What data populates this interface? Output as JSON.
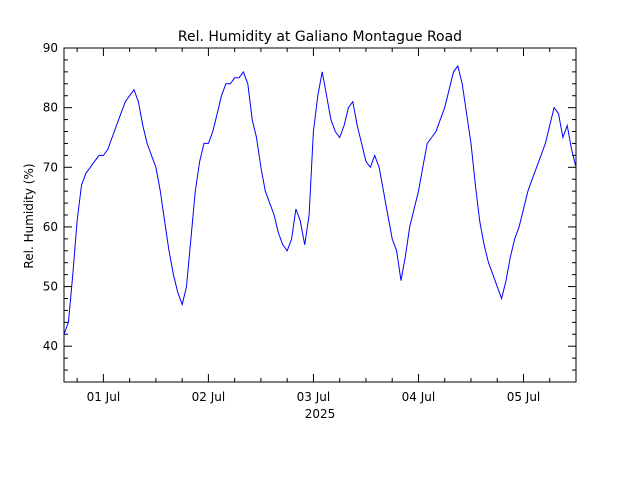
{
  "chart_data": {
    "type": "line",
    "title": "Rel. Humidity at Galiano Montague Road",
    "xlabel": "2025",
    "ylabel": "Rel. Humidity (%)",
    "ylim": [
      34,
      90
    ],
    "yticks": [
      40,
      50,
      60,
      70,
      80,
      90
    ],
    "xlim": [
      "2025-06-30 15:00",
      "2025-07-05 12:00"
    ],
    "xticks": [
      {
        "label": "01 Jul",
        "x": "2025-07-01 00:00"
      },
      {
        "label": "02 Jul",
        "x": "2025-07-02 00:00"
      },
      {
        "label": "03 Jul",
        "x": "2025-07-03 00:00"
      },
      {
        "label": "04 Jul",
        "x": "2025-07-04 00:00"
      },
      {
        "label": "05 Jul",
        "x": "2025-07-05 00:00"
      }
    ],
    "grid": false,
    "line_color": "#0000ff",
    "series": [
      {
        "values": [
          [
            "2025-06-30 15:00",
            42
          ],
          [
            "2025-06-30 16:00",
            44
          ],
          [
            "2025-06-30 17:00",
            52
          ],
          [
            "2025-06-30 18:00",
            61
          ],
          [
            "2025-06-30 19:00",
            67
          ],
          [
            "2025-06-30 20:00",
            69
          ],
          [
            "2025-06-30 21:00",
            70
          ],
          [
            "2025-06-30 22:00",
            71
          ],
          [
            "2025-06-30 23:00",
            72
          ],
          [
            "2025-07-01 00:00",
            72
          ],
          [
            "2025-07-01 01:00",
            73
          ],
          [
            "2025-07-01 02:00",
            75
          ],
          [
            "2025-07-01 03:00",
            77
          ],
          [
            "2025-07-01 04:00",
            79
          ],
          [
            "2025-07-01 05:00",
            81
          ],
          [
            "2025-07-01 06:00",
            82
          ],
          [
            "2025-07-01 07:00",
            83
          ],
          [
            "2025-07-01 08:00",
            81
          ],
          [
            "2025-07-01 09:00",
            77
          ],
          [
            "2025-07-01 10:00",
            74
          ],
          [
            "2025-07-01 11:00",
            72
          ],
          [
            "2025-07-01 12:00",
            70
          ],
          [
            "2025-07-01 13:00",
            66
          ],
          [
            "2025-07-01 14:00",
            61
          ],
          [
            "2025-07-01 15:00",
            56
          ],
          [
            "2025-07-01 16:00",
            52
          ],
          [
            "2025-07-01 17:00",
            49
          ],
          [
            "2025-07-01 18:00",
            47
          ],
          [
            "2025-07-01 19:00",
            50
          ],
          [
            "2025-07-01 20:00",
            58
          ],
          [
            "2025-07-01 21:00",
            66
          ],
          [
            "2025-07-01 22:00",
            71
          ],
          [
            "2025-07-01 23:00",
            74
          ],
          [
            "2025-07-02 00:00",
            74
          ],
          [
            "2025-07-02 01:00",
            76
          ],
          [
            "2025-07-02 02:00",
            79
          ],
          [
            "2025-07-02 03:00",
            82
          ],
          [
            "2025-07-02 04:00",
            84
          ],
          [
            "2025-07-02 05:00",
            84
          ],
          [
            "2025-07-02 06:00",
            85
          ],
          [
            "2025-07-02 07:00",
            85
          ],
          [
            "2025-07-02 08:00",
            86
          ],
          [
            "2025-07-02 09:00",
            84
          ],
          [
            "2025-07-02 10:00",
            78
          ],
          [
            "2025-07-02 11:00",
            75
          ],
          [
            "2025-07-02 12:00",
            70
          ],
          [
            "2025-07-02 13:00",
            66
          ],
          [
            "2025-07-02 14:00",
            64
          ],
          [
            "2025-07-02 15:00",
            62
          ],
          [
            "2025-07-02 16:00",
            59
          ],
          [
            "2025-07-02 17:00",
            57
          ],
          [
            "2025-07-02 18:00",
            56
          ],
          [
            "2025-07-02 19:00",
            58
          ],
          [
            "2025-07-02 20:00",
            63
          ],
          [
            "2025-07-02 21:00",
            61
          ],
          [
            "2025-07-02 22:00",
            57
          ],
          [
            "2025-07-02 23:00",
            62
          ],
          [
            "2025-07-03 00:00",
            76
          ],
          [
            "2025-07-03 01:00",
            82
          ],
          [
            "2025-07-03 02:00",
            86
          ],
          [
            "2025-07-03 03:00",
            82
          ],
          [
            "2025-07-03 04:00",
            78
          ],
          [
            "2025-07-03 05:00",
            76
          ],
          [
            "2025-07-03 06:00",
            75
          ],
          [
            "2025-07-03 07:00",
            77
          ],
          [
            "2025-07-03 08:00",
            80
          ],
          [
            "2025-07-03 09:00",
            81
          ],
          [
            "2025-07-03 10:00",
            77
          ],
          [
            "2025-07-03 11:00",
            74
          ],
          [
            "2025-07-03 12:00",
            71
          ],
          [
            "2025-07-03 13:00",
            70
          ],
          [
            "2025-07-03 14:00",
            72
          ],
          [
            "2025-07-03 15:00",
            70
          ],
          [
            "2025-07-03 16:00",
            66
          ],
          [
            "2025-07-03 17:00",
            62
          ],
          [
            "2025-07-03 18:00",
            58
          ],
          [
            "2025-07-03 19:00",
            56
          ],
          [
            "2025-07-03 20:00",
            51
          ],
          [
            "2025-07-03 21:00",
            55
          ],
          [
            "2025-07-03 22:00",
            60
          ],
          [
            "2025-07-03 23:00",
            63
          ],
          [
            "2025-07-04 00:00",
            66
          ],
          [
            "2025-07-04 01:00",
            70
          ],
          [
            "2025-07-04 02:00",
            74
          ],
          [
            "2025-07-04 03:00",
            75
          ],
          [
            "2025-07-04 04:00",
            76
          ],
          [
            "2025-07-04 05:00",
            78
          ],
          [
            "2025-07-04 06:00",
            80
          ],
          [
            "2025-07-04 07:00",
            83
          ],
          [
            "2025-07-04 08:00",
            86
          ],
          [
            "2025-07-04 09:00",
            87
          ],
          [
            "2025-07-04 10:00",
            84
          ],
          [
            "2025-07-04 11:00",
            79
          ],
          [
            "2025-07-04 12:00",
            74
          ],
          [
            "2025-07-04 13:00",
            67
          ],
          [
            "2025-07-04 14:00",
            61
          ],
          [
            "2025-07-04 15:00",
            57
          ],
          [
            "2025-07-04 16:00",
            54
          ],
          [
            "2025-07-04 17:00",
            52
          ],
          [
            "2025-07-04 18:00",
            50
          ],
          [
            "2025-07-04 19:00",
            48
          ],
          [
            "2025-07-04 20:00",
            51
          ],
          [
            "2025-07-04 21:00",
            55
          ],
          [
            "2025-07-04 22:00",
            58
          ],
          [
            "2025-07-04 23:00",
            60
          ],
          [
            "2025-07-05 00:00",
            63
          ],
          [
            "2025-07-05 01:00",
            66
          ],
          [
            "2025-07-05 02:00",
            68
          ],
          [
            "2025-07-05 03:00",
            70
          ],
          [
            "2025-07-05 04:00",
            72
          ],
          [
            "2025-07-05 05:00",
            74
          ],
          [
            "2025-07-05 06:00",
            77
          ],
          [
            "2025-07-05 07:00",
            80
          ],
          [
            "2025-07-05 08:00",
            79
          ],
          [
            "2025-07-05 09:00",
            75
          ],
          [
            "2025-07-05 10:00",
            77
          ],
          [
            "2025-07-05 11:00",
            73
          ],
          [
            "2025-07-05 12:00",
            70
          ]
        ]
      }
    ]
  }
}
